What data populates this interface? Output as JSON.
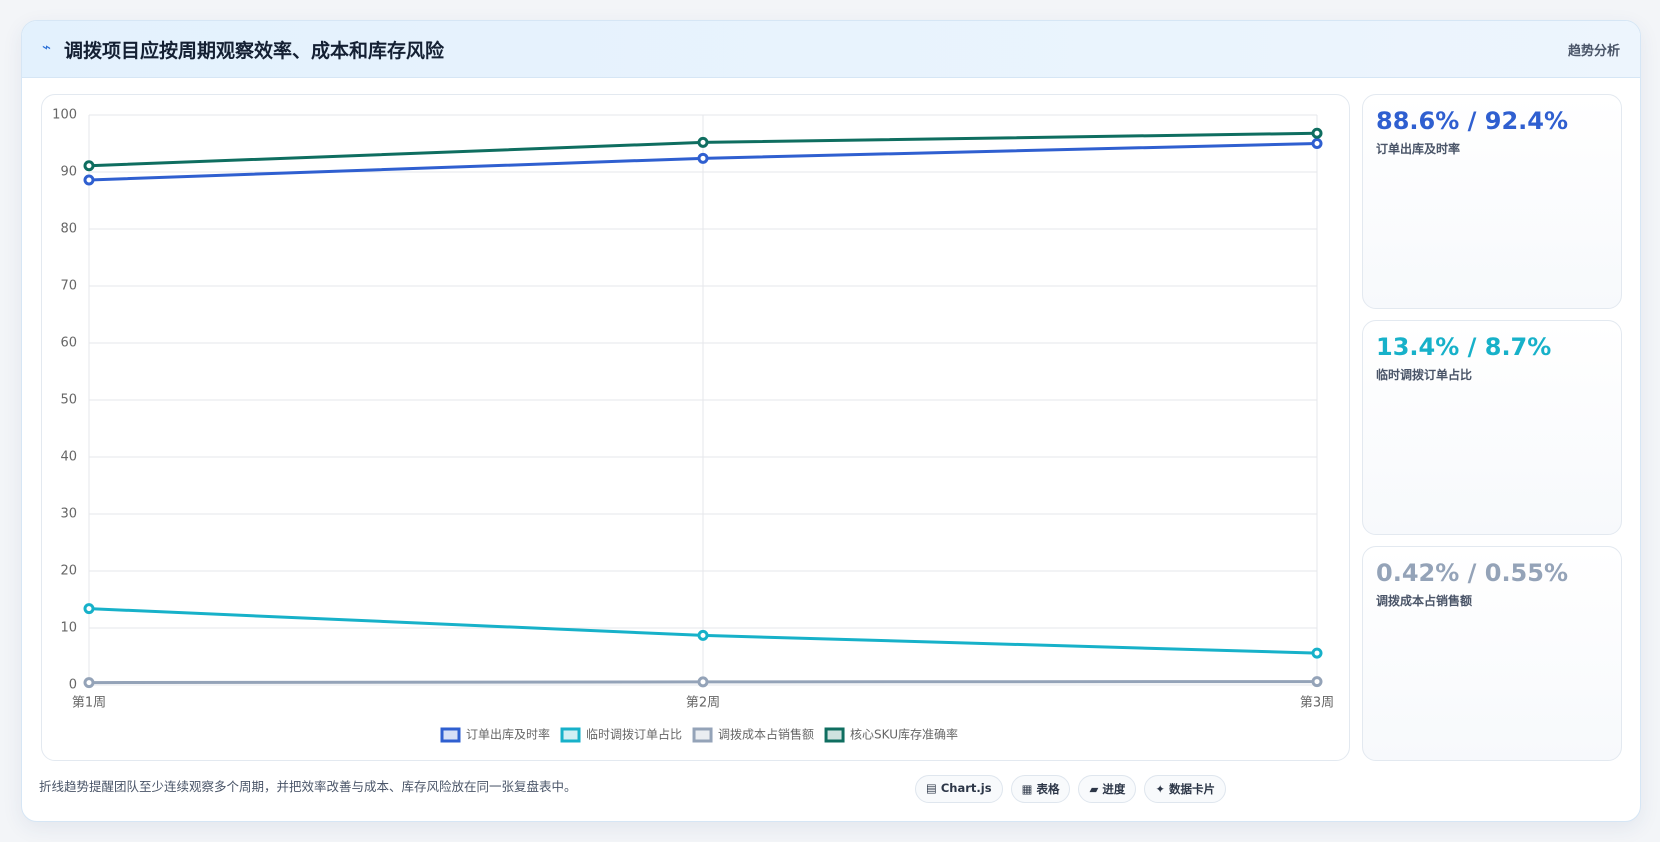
{
  "header": {
    "icon": "⌁",
    "title": "调拨项目应按周期观察效率、成本和库存风险",
    "right": "趋势分析"
  },
  "chart_data": {
    "type": "line",
    "categories": [
      "第1周",
      "第2周",
      "第3周"
    ],
    "series": [
      {
        "name": "订单出库及时率",
        "color": "#2f5fd0",
        "values": [
          88.6,
          92.4,
          95.0
        ]
      },
      {
        "name": "临时调拨订单占比",
        "color": "#17b1c9",
        "values": [
          13.4,
          8.7,
          5.6
        ]
      },
      {
        "name": "调拨成本占销售额",
        "color": "#94a3b8",
        "values": [
          0.42,
          0.55,
          0.6
        ]
      },
      {
        "name": "核心SKU库存准确率",
        "color": "#0f6e60",
        "values": [
          91.1,
          95.2,
          96.8
        ]
      }
    ],
    "ylim": [
      0,
      100
    ],
    "yticks": [
      0,
      10,
      20,
      30,
      40,
      50,
      60,
      70,
      80,
      90,
      100
    ],
    "grid": true
  },
  "cards": [
    {
      "value": "88.6% / 92.4%",
      "label": "订单出库及时率",
      "color": "#2f5fd0"
    },
    {
      "value": "13.4% / 8.7%",
      "label": "临时调拨订单占比",
      "color": "#17b1c9"
    },
    {
      "value": "0.42% / 0.55%",
      "label": "调拨成本占销售额",
      "color": "#94a3b8"
    }
  ],
  "footer": {
    "note": "折线趋势提醒团队至少连续观察多个周期，并把效率改善与成本、库存风险放在同一张复盘表中。",
    "chips": [
      "▤ Chart.js",
      "▦ 表格",
      "▰ 进度",
      "✦ 数据卡片"
    ]
  }
}
